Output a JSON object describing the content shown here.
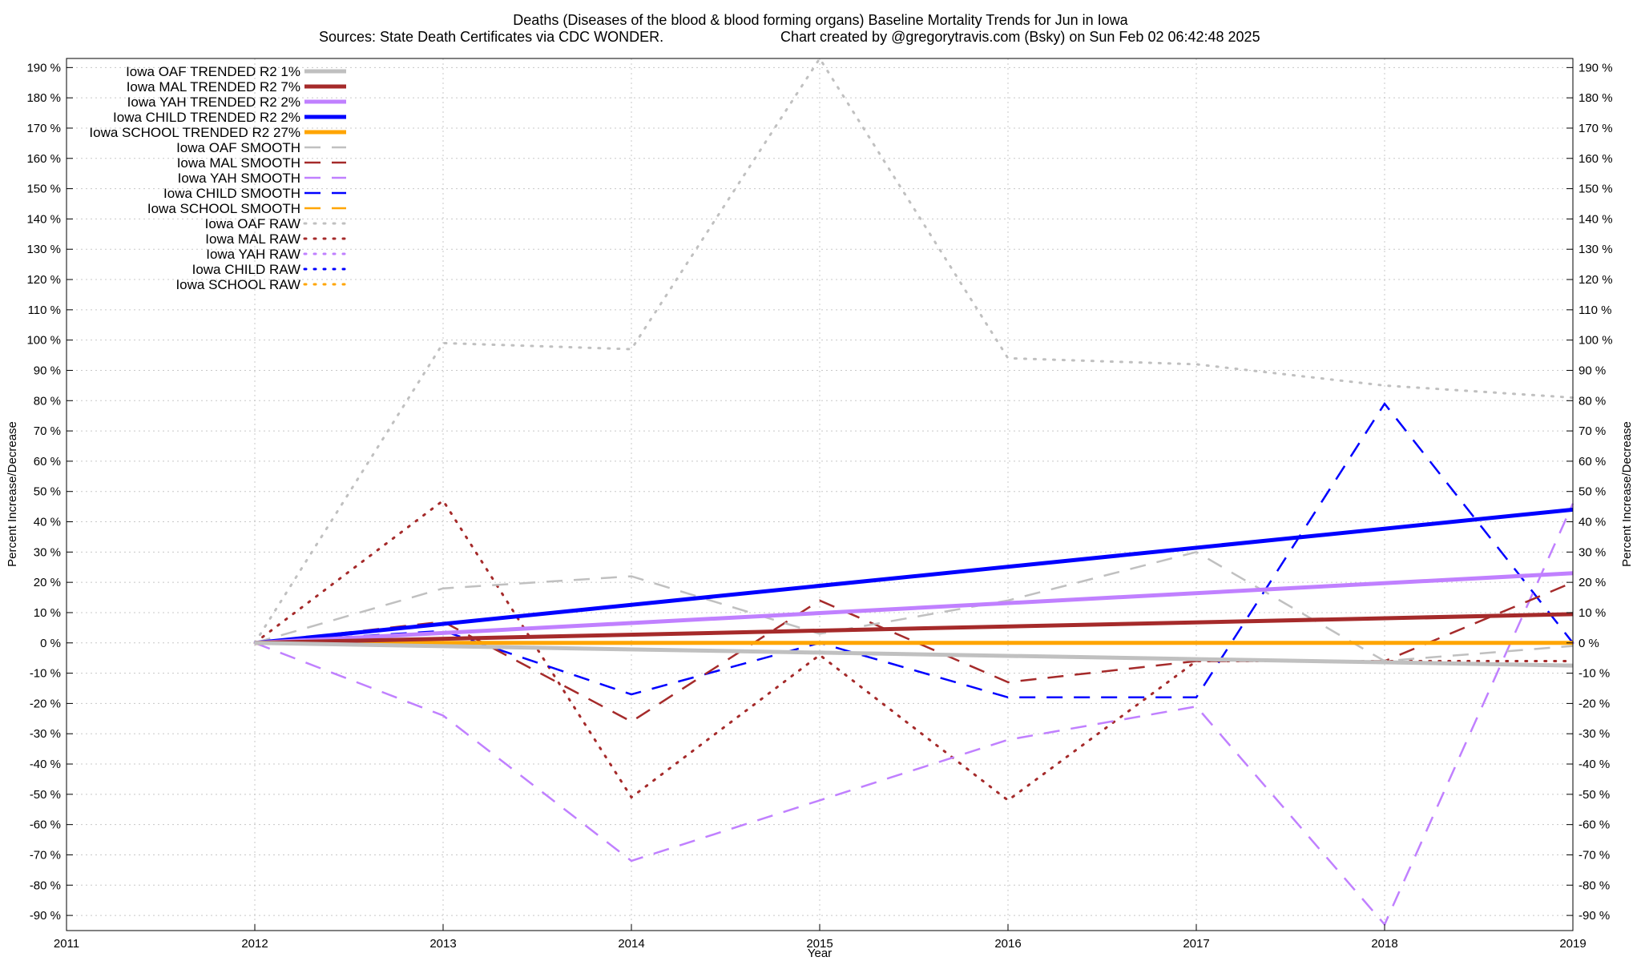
{
  "chart_data": {
    "type": "line",
    "title": "Deaths (Diseases of the blood & blood forming organs)  Baseline Mortality Trends for Jun in Iowa",
    "subtitle_left": "Sources: State Death Certificates via CDC WONDER.",
    "subtitle_right": "Chart created by @gregorytravis.com (Bsky) on Sun Feb 02 06:42:48 2025",
    "xlabel": "Year",
    "ylabel": "Percent Increase/Decrease",
    "ylabel_right": "Percent Increase/Decrease",
    "xlim": [
      2011,
      2019
    ],
    "ylim": [
      -95,
      193
    ],
    "x_ticks": [
      2011,
      2012,
      2013,
      2014,
      2015,
      2016,
      2017,
      2018,
      2019
    ],
    "y_ticks": [
      -90,
      -80,
      -70,
      -60,
      -50,
      -40,
      -30,
      -20,
      -10,
      0,
      10,
      20,
      30,
      40,
      50,
      60,
      70,
      80,
      90,
      100,
      110,
      120,
      130,
      140,
      150,
      160,
      170,
      180,
      190
    ],
    "y_tick_suffix": " %",
    "grid": true,
    "legend_position": "top-left",
    "colors": {
      "oaf": "#c0c0c0",
      "mal": "#a52a2a",
      "yah": "#c080ff",
      "child": "#0000ff",
      "school": "#ffa500"
    },
    "series": [
      {
        "name": "Iowa OAF TRENDED R2",
        "r2": "1%",
        "color": "#c0c0c0",
        "style": "trend",
        "x": [
          2012,
          2019
        ],
        "y": [
          0,
          -7.5
        ]
      },
      {
        "name": "Iowa MAL TRENDED R2",
        "r2": "7%",
        "color": "#a52a2a",
        "style": "trend",
        "x": [
          2012,
          2019
        ],
        "y": [
          0,
          9.5
        ]
      },
      {
        "name": "Iowa YAH TRENDED R2",
        "r2": "2%",
        "color": "#c080ff",
        "style": "trend",
        "x": [
          2012,
          2019
        ],
        "y": [
          0,
          23
        ]
      },
      {
        "name": "Iowa CHILD TRENDED R2",
        "r2": "2%",
        "color": "#0000ff",
        "style": "trend",
        "x": [
          2012,
          2019
        ],
        "y": [
          0,
          44
        ]
      },
      {
        "name": "Iowa SCHOOL TRENDED R2",
        "r2": "27%",
        "color": "#ffa500",
        "style": "trend",
        "x": [
          2012,
          2019
        ],
        "y": [
          0,
          0
        ]
      },
      {
        "name": "Iowa OAF SMOOTH",
        "color": "#c0c0c0",
        "style": "smooth",
        "x": [
          2012,
          2013,
          2014,
          2015,
          2016,
          2017,
          2018,
          2019
        ],
        "y": [
          0,
          18,
          22,
          3,
          14,
          30,
          -6,
          -1
        ]
      },
      {
        "name": "Iowa MAL SMOOTH",
        "color": "#a52a2a",
        "style": "smooth",
        "x": [
          2012,
          2013,
          2014,
          2015,
          2016,
          2017,
          2018,
          2019
        ],
        "y": [
          0,
          7,
          -26,
          14,
          -13,
          -6,
          -6,
          20
        ]
      },
      {
        "name": "Iowa YAH SMOOTH",
        "color": "#c080ff",
        "style": "smooth",
        "x": [
          2012,
          2013,
          2014,
          2015,
          2016,
          2017,
          2018,
          2019
        ],
        "y": [
          0,
          -24,
          -72,
          -52,
          -32,
          -21,
          -93,
          46
        ]
      },
      {
        "name": "Iowa CHILD SMOOTH",
        "color": "#0000ff",
        "style": "smooth",
        "x": [
          2012,
          2013,
          2014,
          2015,
          2016,
          2017,
          2018,
          2019
        ],
        "y": [
          0,
          4,
          -17,
          0,
          -18,
          -18,
          79,
          0
        ]
      },
      {
        "name": "Iowa SCHOOL SMOOTH",
        "color": "#ffa500",
        "style": "smooth",
        "x": [
          2012,
          2013,
          2014,
          2015,
          2016,
          2017,
          2018,
          2019
        ],
        "y": [
          0,
          0,
          0,
          0,
          0,
          0,
          0,
          0
        ]
      },
      {
        "name": "Iowa OAF RAW",
        "color": "#c0c0c0",
        "style": "raw",
        "x": [
          2012,
          2013,
          2014,
          2015,
          2016,
          2017,
          2018,
          2019
        ],
        "y": [
          0,
          99,
          97,
          193,
          94,
          92,
          85,
          81
        ]
      },
      {
        "name": "Iowa MAL RAW",
        "color": "#a52a2a",
        "style": "raw",
        "x": [
          2012,
          2013,
          2014,
          2015,
          2016,
          2017,
          2018,
          2019
        ],
        "y": [
          0,
          47,
          -51,
          -4,
          -52,
          -6,
          -6,
          -6
        ]
      },
      {
        "name": "Iowa YAH RAW",
        "color": "#c080ff",
        "style": "raw",
        "x": [
          2012,
          2013,
          2014,
          2015,
          2016,
          2017,
          2018,
          2019
        ],
        "y": [
          0,
          0,
          0,
          0,
          0,
          0,
          0,
          0
        ]
      },
      {
        "name": "Iowa CHILD RAW",
        "color": "#0000ff",
        "style": "raw",
        "x": [
          2012,
          2013,
          2014,
          2015,
          2016,
          2017,
          2018,
          2019
        ],
        "y": [
          0,
          0,
          0,
          0,
          0,
          0,
          0,
          0
        ]
      },
      {
        "name": "Iowa SCHOOL RAW",
        "color": "#ffa500",
        "style": "raw",
        "x": [
          2012,
          2013,
          2014,
          2015,
          2016,
          2017,
          2018,
          2019
        ],
        "y": [
          0,
          0,
          0,
          0,
          0,
          0,
          0,
          0
        ]
      }
    ]
  }
}
